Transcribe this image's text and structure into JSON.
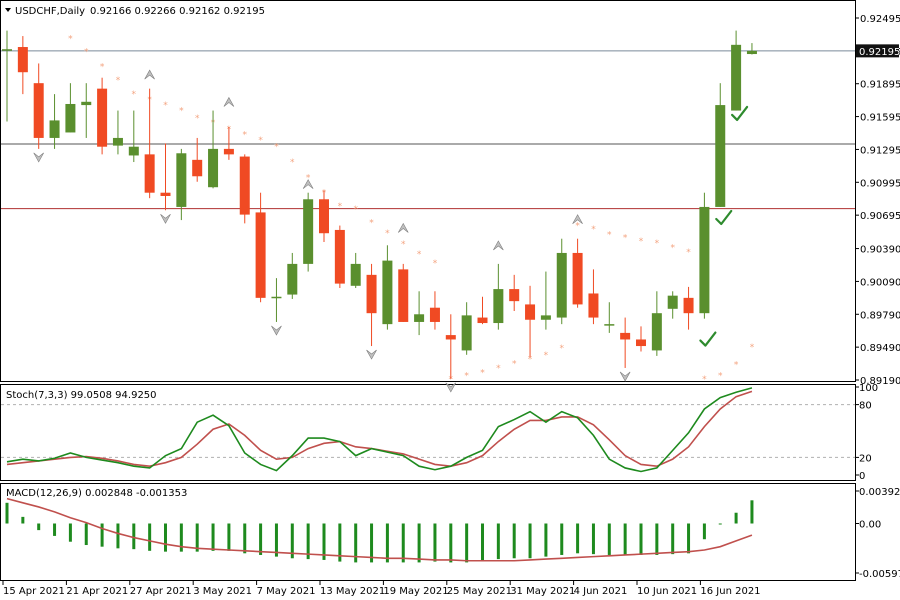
{
  "chart_data": {
    "type": "candlestick",
    "main": {
      "title": "USDCHF,Daily",
      "ohlc_header": "0.92166 0.92266 0.92162 0.92195",
      "last_price_label": "0.92195",
      "yticks": [
        "0.92495",
        "0.92195",
        "0.91895",
        "0.91595",
        "0.91295",
        "0.90995",
        "0.90695",
        "0.90390",
        "0.90090",
        "0.89790",
        "0.89490",
        "0.89190"
      ],
      "ylim": [
        0.8919,
        0.92495
      ],
      "hlines": [
        {
          "value": 0.92195,
          "color": "#7a8a9a"
        },
        {
          "value": 0.91345,
          "color": "#555555"
        },
        {
          "value": 0.90755,
          "color": "#b03030"
        }
      ],
      "candles": [
        {
          "o": 0.922,
          "h": 0.9238,
          "l": 0.9155,
          "c": 0.9221
        },
        {
          "o": 0.9223,
          "h": 0.9233,
          "l": 0.918,
          "c": 0.92
        },
        {
          "o": 0.919,
          "h": 0.9208,
          "l": 0.913,
          "c": 0.914
        },
        {
          "o": 0.914,
          "h": 0.918,
          "l": 0.913,
          "c": 0.9156
        },
        {
          "o": 0.9145,
          "h": 0.919,
          "l": 0.9145,
          "c": 0.9171
        },
        {
          "o": 0.917,
          "h": 0.919,
          "l": 0.914,
          "c": 0.9173
        },
        {
          "o": 0.9185,
          "h": 0.9195,
          "l": 0.9125,
          "c": 0.9132
        },
        {
          "o": 0.9133,
          "h": 0.9165,
          "l": 0.9125,
          "c": 0.914
        },
        {
          "o": 0.9124,
          "h": 0.9165,
          "l": 0.9118,
          "c": 0.9132
        },
        {
          "o": 0.9125,
          "h": 0.9185,
          "l": 0.9085,
          "c": 0.909
        },
        {
          "o": 0.909,
          "h": 0.9135,
          "l": 0.9074,
          "c": 0.9087
        },
        {
          "o": 0.9077,
          "h": 0.913,
          "l": 0.9065,
          "c": 0.9126
        },
        {
          "o": 0.912,
          "h": 0.914,
          "l": 0.91,
          "c": 0.9105
        },
        {
          "o": 0.9095,
          "h": 0.9165,
          "l": 0.9094,
          "c": 0.913
        },
        {
          "o": 0.913,
          "h": 0.915,
          "l": 0.912,
          "c": 0.9125
        },
        {
          "o": 0.9123,
          "h": 0.9125,
          "l": 0.9062,
          "c": 0.907
        },
        {
          "o": 0.9072,
          "h": 0.909,
          "l": 0.899,
          "c": 0.8994
        },
        {
          "o": 0.8995,
          "h": 0.9012,
          "l": 0.8972,
          "c": 0.8995
        },
        {
          "o": 0.8997,
          "h": 0.9035,
          "l": 0.8993,
          "c": 0.9025
        },
        {
          "o": 0.9025,
          "h": 0.909,
          "l": 0.9018,
          "c": 0.9084
        },
        {
          "o": 0.9084,
          "h": 0.9092,
          "l": 0.9045,
          "c": 0.9053
        },
        {
          "o": 0.9056,
          "h": 0.906,
          "l": 0.9003,
          "c": 0.9007
        },
        {
          "o": 0.9005,
          "h": 0.9035,
          "l": 0.9003,
          "c": 0.9025
        },
        {
          "o": 0.9015,
          "h": 0.9025,
          "l": 0.895,
          "c": 0.898
        },
        {
          "o": 0.897,
          "h": 0.9042,
          "l": 0.8965,
          "c": 0.9028
        },
        {
          "o": 0.902,
          "h": 0.9025,
          "l": 0.8972,
          "c": 0.8972
        },
        {
          "o": 0.8972,
          "h": 0.9,
          "l": 0.896,
          "c": 0.8979
        },
        {
          "o": 0.8985,
          "h": 0.9,
          "l": 0.8965,
          "c": 0.8972
        },
        {
          "o": 0.896,
          "h": 0.8979,
          "l": 0.892,
          "c": 0.8956
        },
        {
          "o": 0.8946,
          "h": 0.899,
          "l": 0.8942,
          "c": 0.8978
        },
        {
          "o": 0.8976,
          "h": 0.8995,
          "l": 0.897,
          "c": 0.8971
        },
        {
          "o": 0.8971,
          "h": 0.9025,
          "l": 0.8965,
          "c": 0.9002
        },
        {
          "o": 0.9002,
          "h": 0.9015,
          "l": 0.8982,
          "c": 0.8991
        },
        {
          "o": 0.8988,
          "h": 0.9005,
          "l": 0.894,
          "c": 0.8974
        },
        {
          "o": 0.8974,
          "h": 0.9018,
          "l": 0.8965,
          "c": 0.8978
        },
        {
          "o": 0.8976,
          "h": 0.9048,
          "l": 0.897,
          "c": 0.9035
        },
        {
          "o": 0.9035,
          "h": 0.9048,
          "l": 0.8985,
          "c": 0.8988
        },
        {
          "o": 0.8998,
          "h": 0.902,
          "l": 0.897,
          "c": 0.8976
        },
        {
          "o": 0.897,
          "h": 0.899,
          "l": 0.8962,
          "c": 0.897
        },
        {
          "o": 0.8962,
          "h": 0.8976,
          "l": 0.893,
          "c": 0.8956
        },
        {
          "o": 0.8956,
          "h": 0.8968,
          "l": 0.8945,
          "c": 0.895
        },
        {
          "o": 0.8946,
          "h": 0.9,
          "l": 0.8941,
          "c": 0.898
        },
        {
          "o": 0.8984,
          "h": 0.9,
          "l": 0.8975,
          "c": 0.8996
        },
        {
          "o": 0.8994,
          "h": 0.9004,
          "l": 0.8965,
          "c": 0.898
        },
        {
          "o": 0.898,
          "h": 0.909,
          "l": 0.8975,
          "c": 0.9077
        },
        {
          "o": 0.9077,
          "h": 0.919,
          "l": 0.9077,
          "c": 0.917
        },
        {
          "o": 0.9165,
          "h": 0.9238,
          "l": 0.9165,
          "c": 0.9225
        },
        {
          "o": 0.92166,
          "h": 0.92266,
          "l": 0.92162,
          "c": 0.92195
        }
      ],
      "psar": [
        null,
        null,
        null,
        null,
        0.9231,
        0.9219,
        0.9205,
        0.9193,
        0.918,
        0.9175,
        0.917,
        0.9165,
        0.9158,
        0.9154,
        0.9148,
        0.9143,
        0.9138,
        0.9132,
        0.9118,
        0.9104,
        0.909,
        0.9078,
        0.9075,
        0.9063,
        0.9053,
        0.9043,
        0.9034,
        0.9026,
        0.892,
        0.8923,
        0.8926,
        0.893,
        0.8934,
        0.8938,
        0.8942,
        0.8948,
        0.906,
        0.9057,
        0.9052,
        0.9049,
        0.9046,
        0.9044,
        0.904,
        0.9036,
        0.892,
        0.8923,
        0.8933,
        0.8949
      ],
      "fractals_up": [
        {
          "i": 9,
          "v": 0.919
        },
        {
          "i": 14,
          "v": 0.9165
        },
        {
          "i": 19,
          "v": 0.909
        },
        {
          "i": 25,
          "v": 0.905
        },
        {
          "i": 31,
          "v": 0.9034
        },
        {
          "i": 36,
          "v": 0.9058
        }
      ],
      "fractals_down": [
        {
          "i": 2,
          "v": 0.913
        },
        {
          "i": 10,
          "v": 0.9074
        },
        {
          "i": 17,
          "v": 0.8972
        },
        {
          "i": 23,
          "v": 0.895
        },
        {
          "i": 28,
          "v": 0.892
        },
        {
          "i": 39,
          "v": 0.893
        }
      ],
      "checkmarks": [
        {
          "i": 44,
          "v": 0.8955
        },
        {
          "i": 45,
          "v": 0.9066
        },
        {
          "i": 46,
          "v": 0.9161
        }
      ]
    },
    "stoch": {
      "label": "Stoch(7,3,3) 99.0508 94.9250",
      "yticks": [
        "100",
        "80",
        "20",
        "0"
      ],
      "levels": [
        80,
        20
      ],
      "main": [
        15,
        18,
        16,
        19,
        25,
        20,
        17,
        14,
        10,
        8,
        22,
        30,
        60,
        68,
        56,
        25,
        12,
        5,
        22,
        42,
        42,
        38,
        22,
        30,
        26,
        22,
        10,
        6,
        10,
        20,
        28,
        55,
        63,
        72,
        60,
        72,
        65,
        45,
        18,
        8,
        4,
        8,
        28,
        48,
        75,
        88,
        94,
        99
      ],
      "signal": [
        12,
        14,
        16,
        18,
        20,
        21,
        19,
        16,
        12,
        10,
        14,
        20,
        35,
        52,
        58,
        45,
        28,
        18,
        20,
        30,
        36,
        38,
        32,
        30,
        27,
        24,
        18,
        12,
        10,
        14,
        22,
        38,
        52,
        62,
        62,
        66,
        66,
        57,
        40,
        22,
        12,
        10,
        18,
        32,
        55,
        75,
        89,
        95
      ]
    },
    "macd": {
      "label": "MACD(12,26,9) 0.002848 -0.001353",
      "yticks": [
        "0.003925",
        "0.00",
        "-0.005979"
      ],
      "ylim": [
        -0.005979,
        0.003925
      ],
      "histogram": [
        0.0025,
        0.0008,
        -0.0008,
        -0.0015,
        -0.0022,
        -0.0026,
        -0.0028,
        -0.003,
        -0.0031,
        -0.0033,
        -0.0034,
        -0.0034,
        -0.0034,
        -0.0033,
        -0.0033,
        -0.0036,
        -0.0038,
        -0.004,
        -0.0042,
        -0.0043,
        -0.0044,
        -0.0046,
        -0.0047,
        -0.0047,
        -0.0047,
        -0.0047,
        -0.0047,
        -0.0046,
        -0.0047,
        -0.0047,
        -0.0045,
        -0.0043,
        -0.0042,
        -0.0042,
        -0.004,
        -0.0038,
        -0.0036,
        -0.0037,
        -0.0038,
        -0.0038,
        -0.0038,
        -0.0038,
        -0.0037,
        -0.0036,
        -0.0019,
        0.0,
        0.0013,
        0.0028
      ],
      "signal": [
        0.003,
        0.0025,
        0.002,
        0.0014,
        0.0007,
        0.0001,
        -0.0006,
        -0.0012,
        -0.0017,
        -0.0021,
        -0.0025,
        -0.0028,
        -0.003,
        -0.0031,
        -0.0032,
        -0.0033,
        -0.0034,
        -0.0035,
        -0.0036,
        -0.0037,
        -0.0038,
        -0.0039,
        -0.004,
        -0.0041,
        -0.0042,
        -0.0042,
        -0.0043,
        -0.0044,
        -0.0044,
        -0.0045,
        -0.0045,
        -0.0045,
        -0.0045,
        -0.0044,
        -0.0043,
        -0.0042,
        -0.0041,
        -0.004,
        -0.0039,
        -0.0038,
        -0.0037,
        -0.0036,
        -0.0035,
        -0.0034,
        -0.0032,
        -0.0028,
        -0.0021,
        -0.0014
      ]
    },
    "xticks": [
      {
        "i": 0,
        "label": "15 Apr 2021"
      },
      {
        "i": 4,
        "label": "21 Apr 2021"
      },
      {
        "i": 8,
        "label": "27 Apr 2021"
      },
      {
        "i": 12,
        "label": "3 May 2021"
      },
      {
        "i": 16,
        "label": "7 May 2021"
      },
      {
        "i": 20,
        "label": "13 May 2021"
      },
      {
        "i": 24,
        "label": "19 May 2021"
      },
      {
        "i": 28,
        "label": "25 May 2021"
      },
      {
        "i": 32,
        "label": "31 May 2021"
      },
      {
        "i": 36,
        "label": "4 Jun 2021"
      },
      {
        "i": 40,
        "label": "10 Jun 2021"
      },
      {
        "i": 44,
        "label": "16 Jun 2021"
      }
    ],
    "colors": {
      "bull": "#5a8f2e",
      "bear": "#f04a23",
      "psar": "#f4a582",
      "stoch_main": "#1e8a1e",
      "stoch_signal": "#c0504d",
      "macd_hist": "#1e8a1e",
      "macd_signal": "#c0504d",
      "checkmark": "#2e8b2e",
      "price_label_bg": "#111111",
      "price_label_fg": "#ffffff"
    }
  }
}
